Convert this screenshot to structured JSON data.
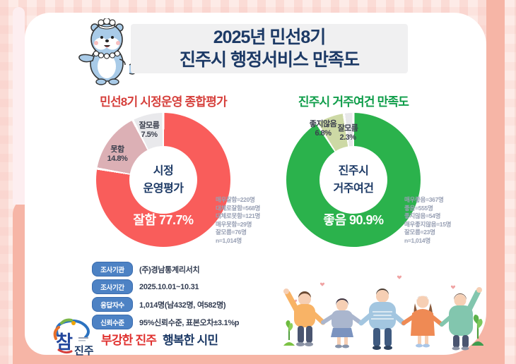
{
  "page": {
    "title_line1": "2025년 민선8기",
    "title_line2": "진주시 행정서비스 만족도"
  },
  "sections": {
    "left_title": "민선8기 시정운영 종합평가",
    "right_title": "진주시 거주여건 만족도"
  },
  "chart_data": [
    {
      "type": "pie",
      "title": "민선8기 시정운영 종합평가",
      "center": {
        "line1": "시정",
        "line2": "운영평가"
      },
      "slices": [
        {
          "label": "잘함",
          "value": 77.7,
          "display": "잘함 77.7%",
          "pct_display": "77.7%",
          "color": "#f95d5b"
        },
        {
          "label": "못함",
          "value": 14.8,
          "display": "못함 14.8%",
          "pct_display": "14.8%",
          "color": "#dcb0b5"
        },
        {
          "label": "잘모름",
          "value": 7.5,
          "display": "잘모름 7.5%",
          "pct_display": "7.5%",
          "color": "#e9e9ec"
        }
      ],
      "annotations": [
        "매우잘함=220명",
        "대체로잘함=568명",
        "대체로못함=121명",
        "매우못함=29명",
        "잘모름=76명",
        "n=1,014명"
      ]
    },
    {
      "type": "pie",
      "title": "진주시 거주여건 만족도",
      "center": {
        "line1": "진주시",
        "line2": "거주여건"
      },
      "slices": [
        {
          "label": "좋음",
          "value": 90.9,
          "display": "좋음 90.9%",
          "pct_display": "90.9%",
          "color": "#2bb24c"
        },
        {
          "label": "좋지않음",
          "value": 6.8,
          "display": "좋지않음 6.8%",
          "pct_display": "6.8%",
          "color": "#cdd9a5"
        },
        {
          "label": "잘모름",
          "value": 2.3,
          "display": "잘모름 2.3%",
          "pct_display": "2.3%",
          "color": "#e8e8ea"
        }
      ],
      "annotations": [
        "매우좋음=367명",
        "좋음=555명",
        "좋지않음=54명",
        "매우좋지않음=15명",
        "잘모름=23명",
        "n=1,014명"
      ]
    }
  ],
  "survey_info": {
    "rows": [
      {
        "label": "조사기관",
        "value": "(주)경남통계리서치"
      },
      {
        "label": "조사기간",
        "value": "2025.10.01~10.31"
      },
      {
        "label": "응답자수",
        "value": "1,014명(남432명, 여582명)"
      },
      {
        "label": "신뢰수준",
        "value": "95%신뢰수준, 표본오차±3.1%p"
      }
    ]
  },
  "footer": {
    "logo_cham": "참",
    "logo_jinju": "진주",
    "slogan_red": "부강한 진주",
    "slogan_navy": "행복한 시민"
  },
  "colors": {
    "title_navy": "#1d3a66",
    "section_red": "#d6403c",
    "section_green": "#0f9d4a",
    "frame_salmon": "#f6b5a6",
    "pill_blue": "#4d82c4"
  }
}
